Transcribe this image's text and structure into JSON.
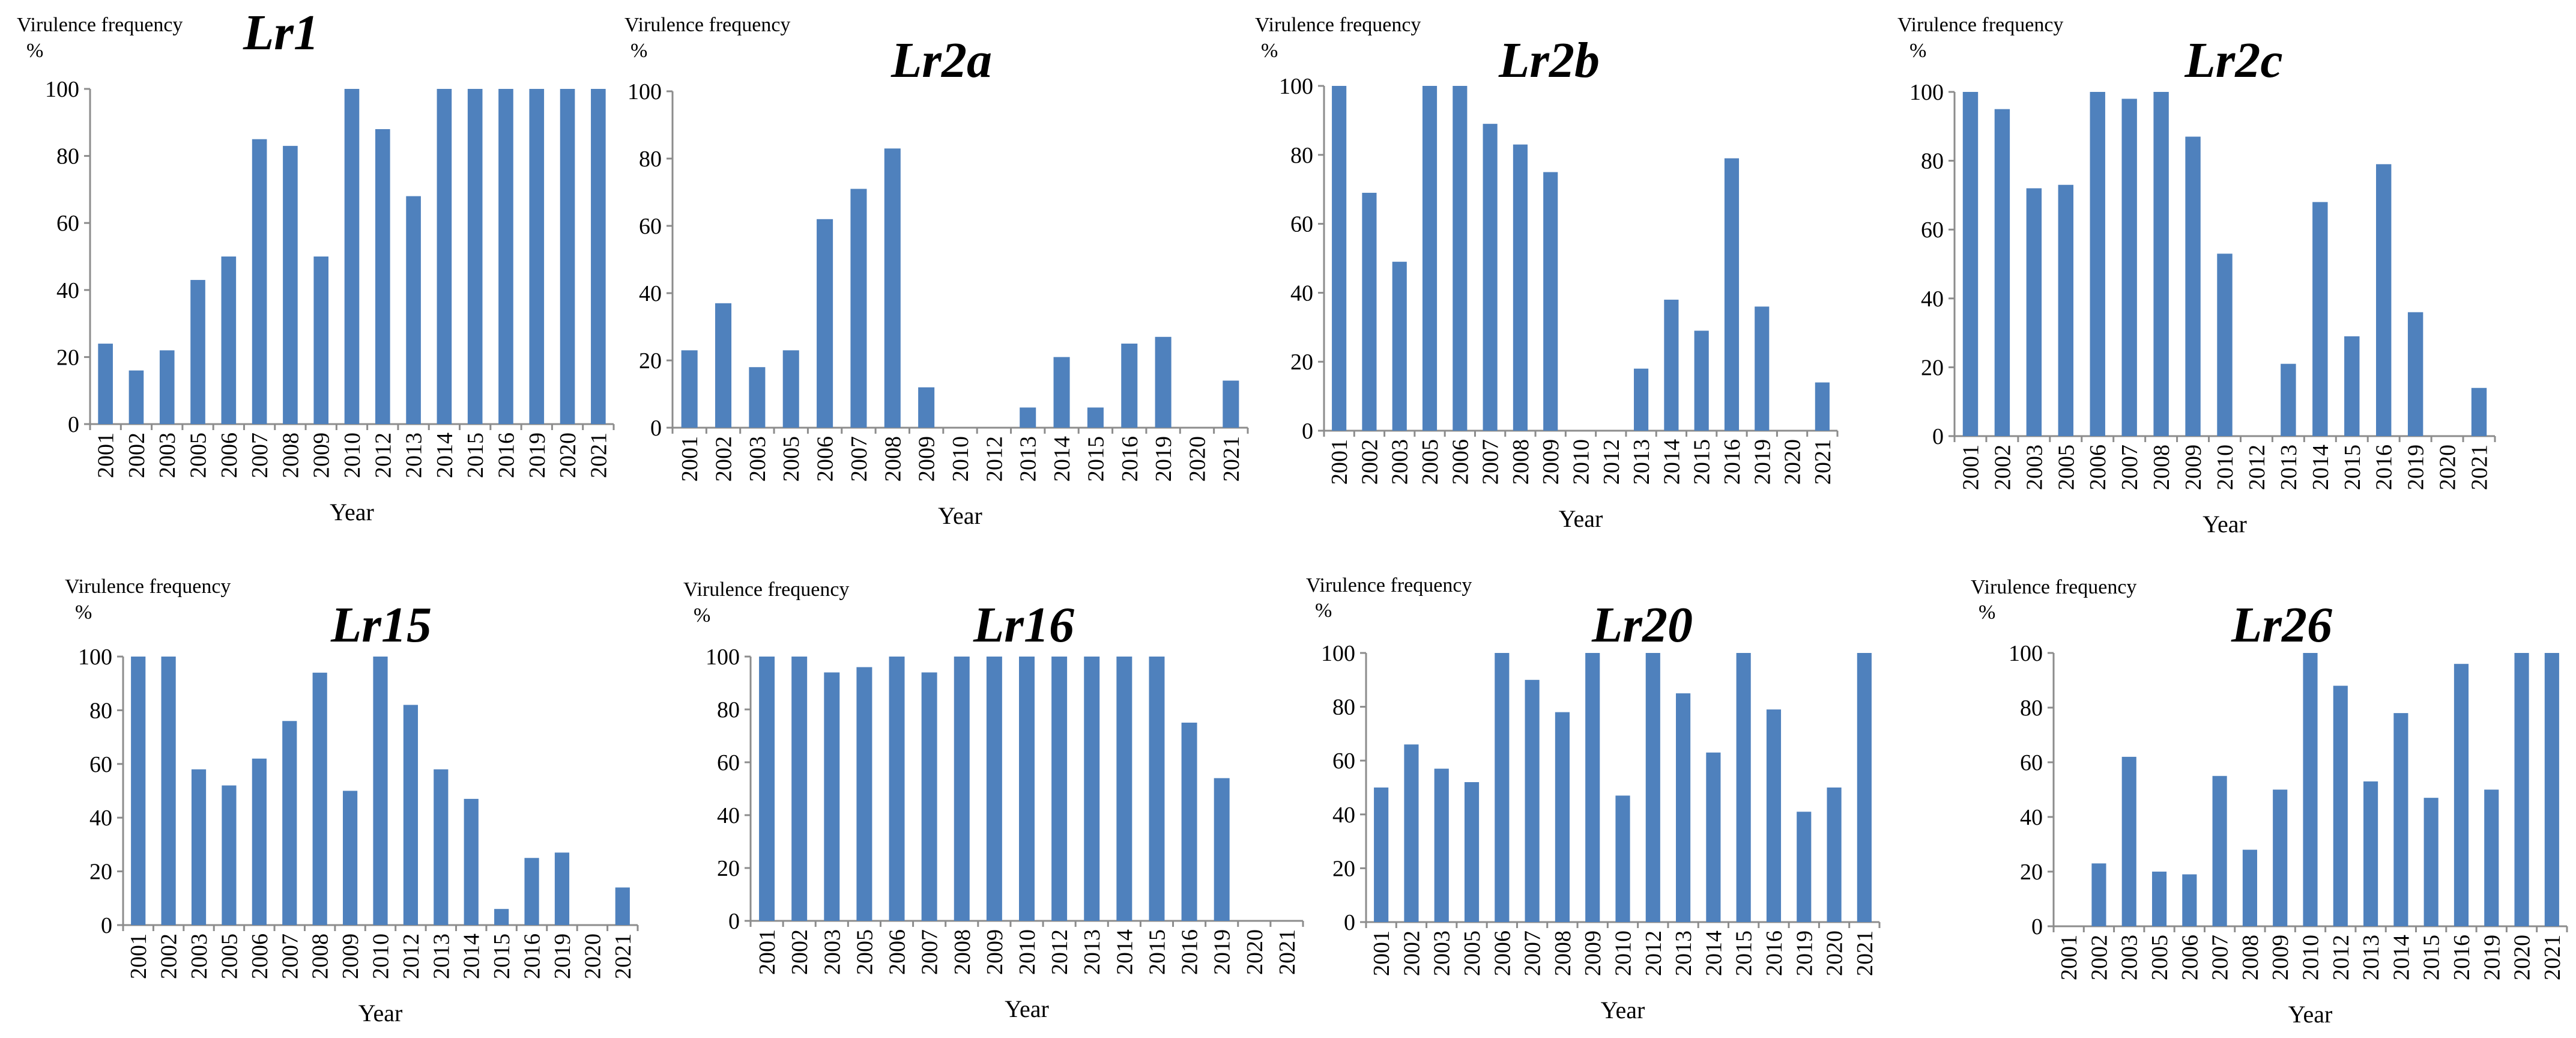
{
  "chart_data": [
    {
      "type": "bar",
      "title": "Lr1",
      "ylabel": "Virulence frequency",
      "yunit": "%",
      "xlabel": "Year",
      "ylim": [
        0,
        100
      ],
      "yticks": [
        "0",
        "20",
        "40",
        "60",
        "80",
        "100"
      ],
      "categories": [
        "2001",
        "2002",
        "2003",
        "2005",
        "2006",
        "2007",
        "2008",
        "2009",
        "2010",
        "2012",
        "2013",
        "2014",
        "2015",
        "2016",
        "2019",
        "2020",
        "2021"
      ],
      "values": [
        24,
        16,
        22,
        43,
        50,
        85,
        83,
        50,
        100,
        88,
        68,
        100,
        100,
        100,
        100,
        100,
        100
      ],
      "color": "#4f81bd"
    },
    {
      "type": "bar",
      "title": "Lr2a",
      "ylabel": "Virulence frequency",
      "yunit": "%",
      "xlabel": "Year",
      "ylim": [
        0,
        100
      ],
      "yticks": [
        "0",
        "20",
        "40",
        "60",
        "80",
        "100"
      ],
      "categories": [
        "2001",
        "2002",
        "2003",
        "2005",
        "2006",
        "2007",
        "2008",
        "2009",
        "2010",
        "2012",
        "2013",
        "2014",
        "2015",
        "2016",
        "2019",
        "2020",
        "2021"
      ],
      "values": [
        23,
        37,
        18,
        23,
        62,
        71,
        83,
        12,
        0,
        0,
        6,
        21,
        6,
        25,
        27,
        0,
        14
      ],
      "color": "#4f81bd"
    },
    {
      "type": "bar",
      "title": "Lr2b",
      "ylabel": "Virulence frequency",
      "yunit": "%",
      "xlabel": "Year",
      "ylim": [
        0,
        100
      ],
      "yticks": [
        "0",
        "20",
        "40",
        "60",
        "80",
        "100"
      ],
      "categories": [
        "2001",
        "2002",
        "2003",
        "2005",
        "2006",
        "2007",
        "2008",
        "2009",
        "2010",
        "2012",
        "2013",
        "2014",
        "2015",
        "2016",
        "2019",
        "2020",
        "2021"
      ],
      "values": [
        100,
        69,
        49,
        100,
        100,
        89,
        83,
        75,
        0,
        0,
        18,
        38,
        29,
        79,
        36,
        0,
        14
      ],
      "color": "#4f81bd"
    },
    {
      "type": "bar",
      "title": "Lr2c",
      "ylabel": "Virulence frequency",
      "yunit": "%",
      "xlabel": "Year",
      "ylim": [
        0,
        100
      ],
      "yticks": [
        "0",
        "20",
        "40",
        "60",
        "80",
        "100"
      ],
      "categories": [
        "2001",
        "2002",
        "2003",
        "2005",
        "2006",
        "2007",
        "2008",
        "2009",
        "2010",
        "2012",
        "2013",
        "2014",
        "2015",
        "2016",
        "2019",
        "2020",
        "2021"
      ],
      "values": [
        100,
        95,
        72,
        73,
        100,
        98,
        100,
        87,
        53,
        0,
        21,
        68,
        29,
        79,
        36,
        0,
        14
      ],
      "color": "#4f81bd"
    },
    {
      "type": "bar",
      "title": "Lr15",
      "ylabel": "Virulence frequency",
      "yunit": "%",
      "xlabel": "Year",
      "ylim": [
        0,
        100
      ],
      "yticks": [
        "0",
        "20",
        "40",
        "60",
        "80",
        "100"
      ],
      "categories": [
        "2001",
        "2002",
        "2003",
        "2005",
        "2006",
        "2007",
        "2008",
        "2009",
        "2010",
        "2012",
        "2013",
        "2014",
        "2015",
        "2016",
        "2019",
        "2020",
        "2021"
      ],
      "values": [
        100,
        100,
        58,
        52,
        62,
        76,
        94,
        50,
        100,
        82,
        58,
        47,
        6,
        25,
        27,
        0,
        14
      ],
      "color": "#4f81bd"
    },
    {
      "type": "bar",
      "title": "Lr16",
      "ylabel": "Virulence frequency",
      "yunit": "%",
      "xlabel": "Year",
      "ylim": [
        0,
        100
      ],
      "yticks": [
        "0",
        "20",
        "40",
        "60",
        "80",
        "100"
      ],
      "categories": [
        "2001",
        "2002",
        "2003",
        "2005",
        "2006",
        "2007",
        "2008",
        "2009",
        "2010",
        "2012",
        "2013",
        "2014",
        "2015",
        "2016",
        "2019",
        "2020",
        "2021"
      ],
      "values": [
        100,
        100,
        94,
        96,
        100,
        94,
        100,
        100,
        100,
        100,
        100,
        100,
        100,
        75,
        54,
        0,
        0
      ],
      "color": "#4f81bd"
    },
    {
      "type": "bar",
      "title": "Lr20",
      "ylabel": "Virulence frequency",
      "yunit": "%",
      "xlabel": "Year",
      "ylim": [
        0,
        100
      ],
      "yticks": [
        "0",
        "20",
        "40",
        "60",
        "80",
        "100"
      ],
      "categories": [
        "2001",
        "2002",
        "2003",
        "2005",
        "2006",
        "2007",
        "2008",
        "2009",
        "2010",
        "2012",
        "2013",
        "2014",
        "2015",
        "2016",
        "2019",
        "2020",
        "2021"
      ],
      "values": [
        50,
        66,
        57,
        52,
        100,
        90,
        78,
        100,
        47,
        100,
        85,
        63,
        100,
        79,
        41,
        50,
        100
      ],
      "color": "#4f81bd"
    },
    {
      "type": "bar",
      "title": "Lr26",
      "ylabel": "Virulence frequency",
      "yunit": "%",
      "xlabel": "Year",
      "ylim": [
        0,
        100
      ],
      "yticks": [
        "0",
        "20",
        "40",
        "60",
        "80",
        "100"
      ],
      "categories": [
        "2001",
        "2002",
        "2003",
        "2005",
        "2006",
        "2007",
        "2008",
        "2009",
        "2010",
        "2012",
        "2013",
        "2014",
        "2015",
        "2016",
        "2019",
        "2020",
        "2021"
      ],
      "values": [
        0,
        23,
        62,
        20,
        19,
        55,
        28,
        50,
        100,
        88,
        53,
        78,
        47,
        96,
        50,
        100,
        100
      ],
      "color": "#4f81bd"
    }
  ]
}
